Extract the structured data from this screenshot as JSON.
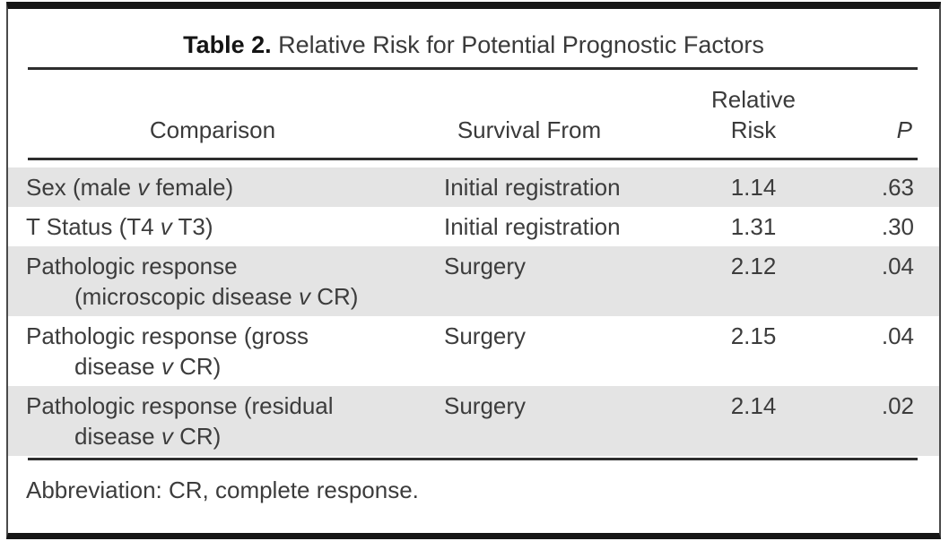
{
  "table": {
    "title": {
      "label": "Table 2.",
      "text": " Relative Risk for Potential Prognostic Factors"
    },
    "columns": {
      "comparison": "Comparison",
      "survival_from": "Survival From",
      "relative_risk_line1": "Relative",
      "relative_risk_line2": "Risk",
      "p": "P"
    },
    "rows": [
      {
        "line1_pre": "Sex (male ",
        "line1_v": "v",
        "line1_post": " female)",
        "survival_from": "Initial registration",
        "relative_risk": "1.14",
        "p": ".63",
        "shaded": true
      },
      {
        "line1_pre": "T Status (T4 ",
        "line1_v": "v",
        "line1_post": " T3)",
        "survival_from": "Initial registration",
        "relative_risk": "1.31",
        "p": ".30",
        "shaded": false
      },
      {
        "line1_pre": "Pathologic response",
        "line2_pre": "(microscopic disease ",
        "line2_v": "v",
        "line2_post": " CR)",
        "survival_from": "Surgery",
        "relative_risk": "2.12",
        "p": ".04",
        "shaded": true
      },
      {
        "line1_pre": "Pathologic response (gross",
        "line2_pre": "disease ",
        "line2_v": "v",
        "line2_post": " CR)",
        "survival_from": "Surgery",
        "relative_risk": "2.15",
        "p": ".04",
        "shaded": false
      },
      {
        "line1_pre": "Pathologic response (residual",
        "line2_pre": "disease ",
        "line2_v": "v",
        "line2_post": " CR)",
        "survival_from": "Surgery",
        "relative_risk": "2.14",
        "p": ".02",
        "shaded": true
      }
    ],
    "footnote": "Abbreviation: CR, complete response."
  },
  "colors": {
    "row_shade": "#e4e4e4",
    "text": "#3c3c3c",
    "rule": "#2e2e2e",
    "frame_heavy": "#161616"
  }
}
